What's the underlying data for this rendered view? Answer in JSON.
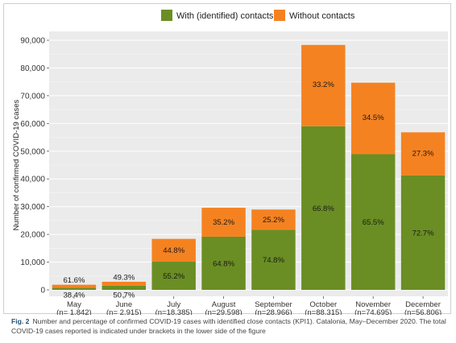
{
  "chart_data": {
    "type": "bar",
    "stacked": true,
    "ylabel": "Number of confirmed COVID-19 cases",
    "ylim": [
      0,
      90000
    ],
    "yticks": [
      "0",
      "10,000",
      "20,000",
      "30,000",
      "40,000",
      "50,000",
      "60,000",
      "70,000",
      "80,000",
      "90,000"
    ],
    "ytick_values": [
      0,
      10000,
      20000,
      30000,
      40000,
      50000,
      60000,
      70000,
      80000,
      90000
    ],
    "grid": true,
    "legend_position": "top",
    "categories": [
      "May",
      "June",
      "July",
      "August",
      "September",
      "October",
      "November",
      "December"
    ],
    "totals_labels": [
      "(n= 1,842)",
      "(n= 2,915)",
      "(n=18,385)",
      "(n=29,598)",
      "(n=28,966)",
      "(n=88,315)",
      "(n=74,695)",
      "(n=56,806)"
    ],
    "series": [
      {
        "name": "With (identified) contacts",
        "color": "#6a8e23",
        "values": [
          707,
          1478,
          10149,
          19180,
          21667,
          58994,
          48925,
          41298
        ],
        "labels": [
          "38.4%",
          "50.7%",
          "55.2%",
          "64.8%",
          "74.8%",
          "66.8%",
          "65.5%",
          "72.7%"
        ]
      },
      {
        "name": "Without contacts",
        "color": "#f58220",
        "values": [
          1135,
          1437,
          8236,
          10418,
          7299,
          29321,
          25770,
          15508
        ],
        "labels": [
          "61.6%",
          "49.3%",
          "44.8%",
          "35.2%",
          "25.2%",
          "33.2%",
          "34.5%",
          "27.3%"
        ]
      }
    ]
  },
  "caption": {
    "label": "Fig. 2",
    "text": "Number and percentage of confirmed COVID-19 cases with identified close contacts (KPI1). Catalonia, May–December 2020. The total COVID-19 cases reported is indicated under brackets in the lower side of the figure"
  }
}
